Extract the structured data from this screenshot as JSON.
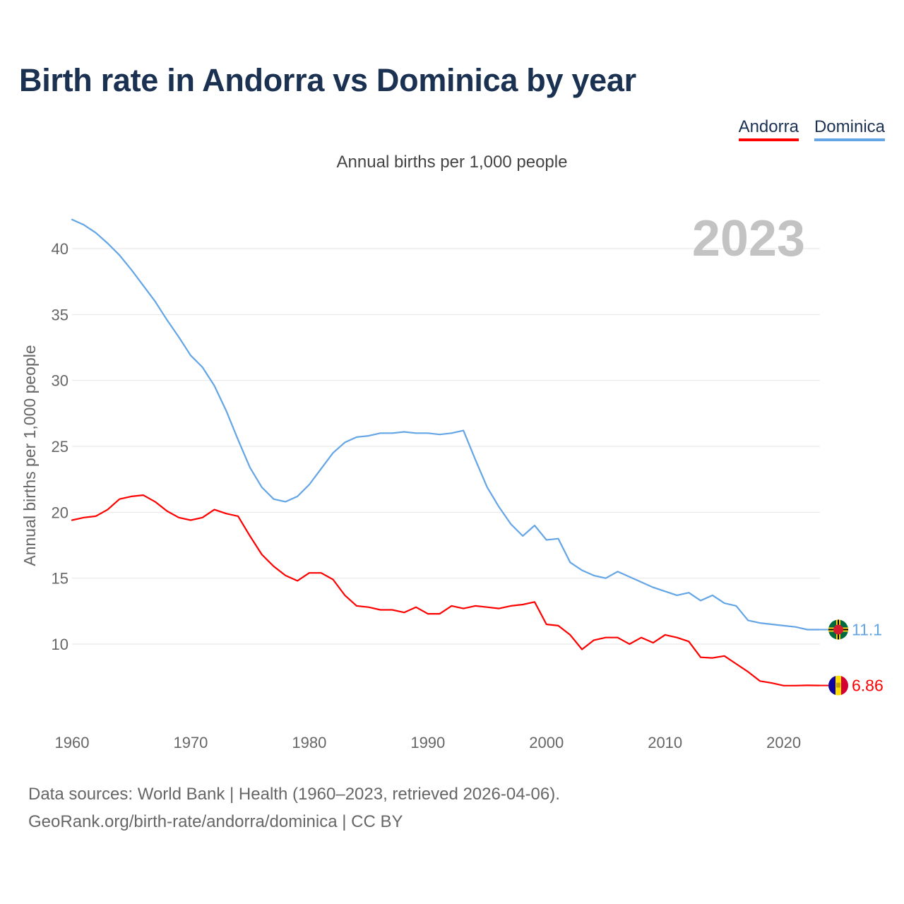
{
  "title": "Birth rate in Andorra vs Dominica by year",
  "subtitle": "Annual births per 1,000 people",
  "year_label": "2023",
  "legend": {
    "andorra": "Andorra",
    "dominica": "Dominica"
  },
  "colors": {
    "andorra": "#ff0000",
    "dominica": "#64a5e6",
    "title": "#1b3152",
    "grid": "#e6e6e6"
  },
  "end_labels": {
    "andorra": "6.86",
    "dominica": "11.1"
  },
  "footer": {
    "line1": "Data sources: World Bank | Health (1960–2023, retrieved 2026-04-06).",
    "line2": "GeoRank.org/birth-rate/andorra/dominica | CC BY"
  },
  "chart_data": {
    "type": "line",
    "title": "Birth rate in Andorra vs Dominica by year",
    "xlabel": "",
    "ylabel": "Annual births per 1,000 people",
    "xlim": [
      1960,
      2023
    ],
    "ylim": [
      5,
      43
    ],
    "yticks": [
      10,
      15,
      20,
      25,
      30,
      35,
      40
    ],
    "xticks": [
      1960,
      1970,
      1980,
      1990,
      2000,
      2010,
      2020
    ],
    "grid": true,
    "legend_position": "top-right",
    "x": [
      1960,
      1961,
      1962,
      1963,
      1964,
      1965,
      1966,
      1967,
      1968,
      1969,
      1970,
      1971,
      1972,
      1973,
      1974,
      1975,
      1976,
      1977,
      1978,
      1979,
      1980,
      1981,
      1982,
      1983,
      1984,
      1985,
      1986,
      1987,
      1988,
      1989,
      1990,
      1991,
      1992,
      1993,
      1994,
      1995,
      1996,
      1997,
      1998,
      1999,
      2000,
      2001,
      2002,
      2003,
      2004,
      2005,
      2006,
      2007,
      2008,
      2009,
      2010,
      2011,
      2012,
      2013,
      2014,
      2015,
      2016,
      2017,
      2018,
      2019,
      2020,
      2021,
      2022,
      2023
    ],
    "series": [
      {
        "name": "Andorra",
        "values": [
          19.4,
          19.6,
          19.7,
          20.2,
          21.0,
          21.2,
          21.3,
          20.8,
          20.1,
          19.6,
          19.4,
          19.6,
          20.2,
          19.9,
          19.7,
          18.2,
          16.8,
          15.9,
          15.2,
          14.8,
          15.4,
          15.4,
          14.9,
          13.7,
          12.9,
          12.8,
          12.6,
          12.6,
          12.4,
          12.8,
          12.3,
          12.3,
          12.9,
          12.7,
          12.9,
          12.8,
          12.7,
          12.9,
          13.0,
          13.2,
          11.5,
          11.4,
          10.7,
          9.6,
          10.3,
          10.5,
          10.5,
          10.0,
          10.5,
          10.1,
          10.7,
          10.5,
          10.2,
          9.0,
          8.95,
          9.1,
          8.5,
          7.9,
          7.2,
          7.05,
          6.85,
          6.85,
          6.87,
          6.86
        ]
      },
      {
        "name": "Dominica",
        "values": [
          42.2,
          41.8,
          41.2,
          40.4,
          39.5,
          38.4,
          37.2,
          36.0,
          34.6,
          33.3,
          31.9,
          31.0,
          29.6,
          27.7,
          25.5,
          23.4,
          21.9,
          21.0,
          20.8,
          21.2,
          22.1,
          23.3,
          24.5,
          25.3,
          25.7,
          25.8,
          26.0,
          26.0,
          26.1,
          26.0,
          26.0,
          25.9,
          26.0,
          26.2,
          24.0,
          21.9,
          20.4,
          19.1,
          18.2,
          19.0,
          17.9,
          18.0,
          16.2,
          15.6,
          15.2,
          15.0,
          15.5,
          15.1,
          14.7,
          14.3,
          14.0,
          13.7,
          13.9,
          13.3,
          13.7,
          13.1,
          12.9,
          11.8,
          11.6,
          11.5,
          11.4,
          11.3,
          11.1,
          11.1
        ]
      }
    ]
  }
}
